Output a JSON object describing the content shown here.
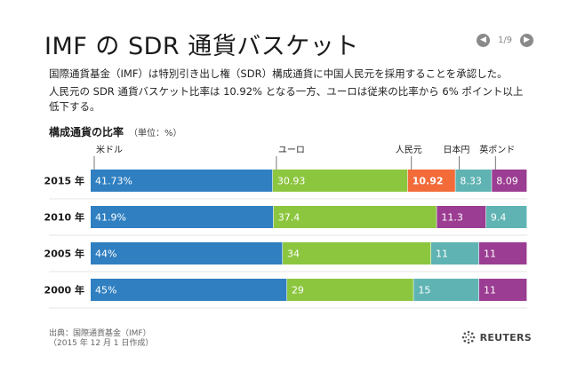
{
  "title": "IMF の SDR 通貨バスケット",
  "pager": {
    "current": "1/9",
    "prev_icon": "chevron-left-icon",
    "next_icon": "chevron-right-icon"
  },
  "description": [
    "国際通貨基金（IMF）は特別引き出し権（SDR）構成通貨に中国人民元を採用することを承認した。",
    "人民元の SDR 通貨バスケット比率は 10.92% となる一方、ユーロは従来の比率から 6% ポイント以上低下する。"
  ],
  "chart_title": "構成通貨の比率",
  "chart_unit": "（単位：%）",
  "footer": {
    "source": "出典：国際通貨基金（IMF）",
    "date_note": "（2015 年 12 月 1 日作成）"
  },
  "logo": {
    "text": "REUTERS"
  },
  "chart_data": {
    "type": "bar",
    "orientation": "horizontal",
    "stacked": true,
    "xlim": [
      0,
      100
    ],
    "categories": [
      "2015 年",
      "2010 年",
      "2005 年",
      "2000 年"
    ],
    "currency_labels": [
      "米ドル",
      "ユーロ",
      "人民元",
      "日本円",
      "英ポンド"
    ],
    "colors": {
      "usd": "#2f7fc1",
      "eur": "#8cc63f",
      "cny": "#f26b38",
      "jpy": "#5fb3b3",
      "gbp": "#9b3d92"
    },
    "rows": [
      {
        "segments": [
          {
            "key": "usd",
            "value": 41.73,
            "label": "41.73%"
          },
          {
            "key": "eur",
            "value": 30.93,
            "label": "30.93"
          },
          {
            "key": "cny",
            "value": 10.92,
            "label": "10.92",
            "bold": true
          },
          {
            "key": "jpy",
            "value": 8.33,
            "label": "8.33"
          },
          {
            "key": "gbp",
            "value": 8.09,
            "label": "8.09"
          }
        ]
      },
      {
        "segments": [
          {
            "key": "usd",
            "value": 41.9,
            "label": "41.9%"
          },
          {
            "key": "eur",
            "value": 37.4,
            "label": "37.4"
          },
          {
            "key": "gbp",
            "value": 11.3,
            "label": "11.3"
          },
          {
            "key": "jpy",
            "value": 9.4,
            "label": "9.4"
          }
        ]
      },
      {
        "segments": [
          {
            "key": "usd",
            "value": 44,
            "label": "44%"
          },
          {
            "key": "eur",
            "value": 34,
            "label": "34"
          },
          {
            "key": "jpy",
            "value": 11,
            "label": "11"
          },
          {
            "key": "gbp",
            "value": 11,
            "label": "11"
          }
        ]
      },
      {
        "segments": [
          {
            "key": "usd",
            "value": 45,
            "label": "45%"
          },
          {
            "key": "eur",
            "value": 29,
            "label": "29"
          },
          {
            "key": "jpy",
            "value": 15,
            "label": "15"
          },
          {
            "key": "gbp",
            "value": 11,
            "label": "11"
          }
        ]
      }
    ]
  }
}
